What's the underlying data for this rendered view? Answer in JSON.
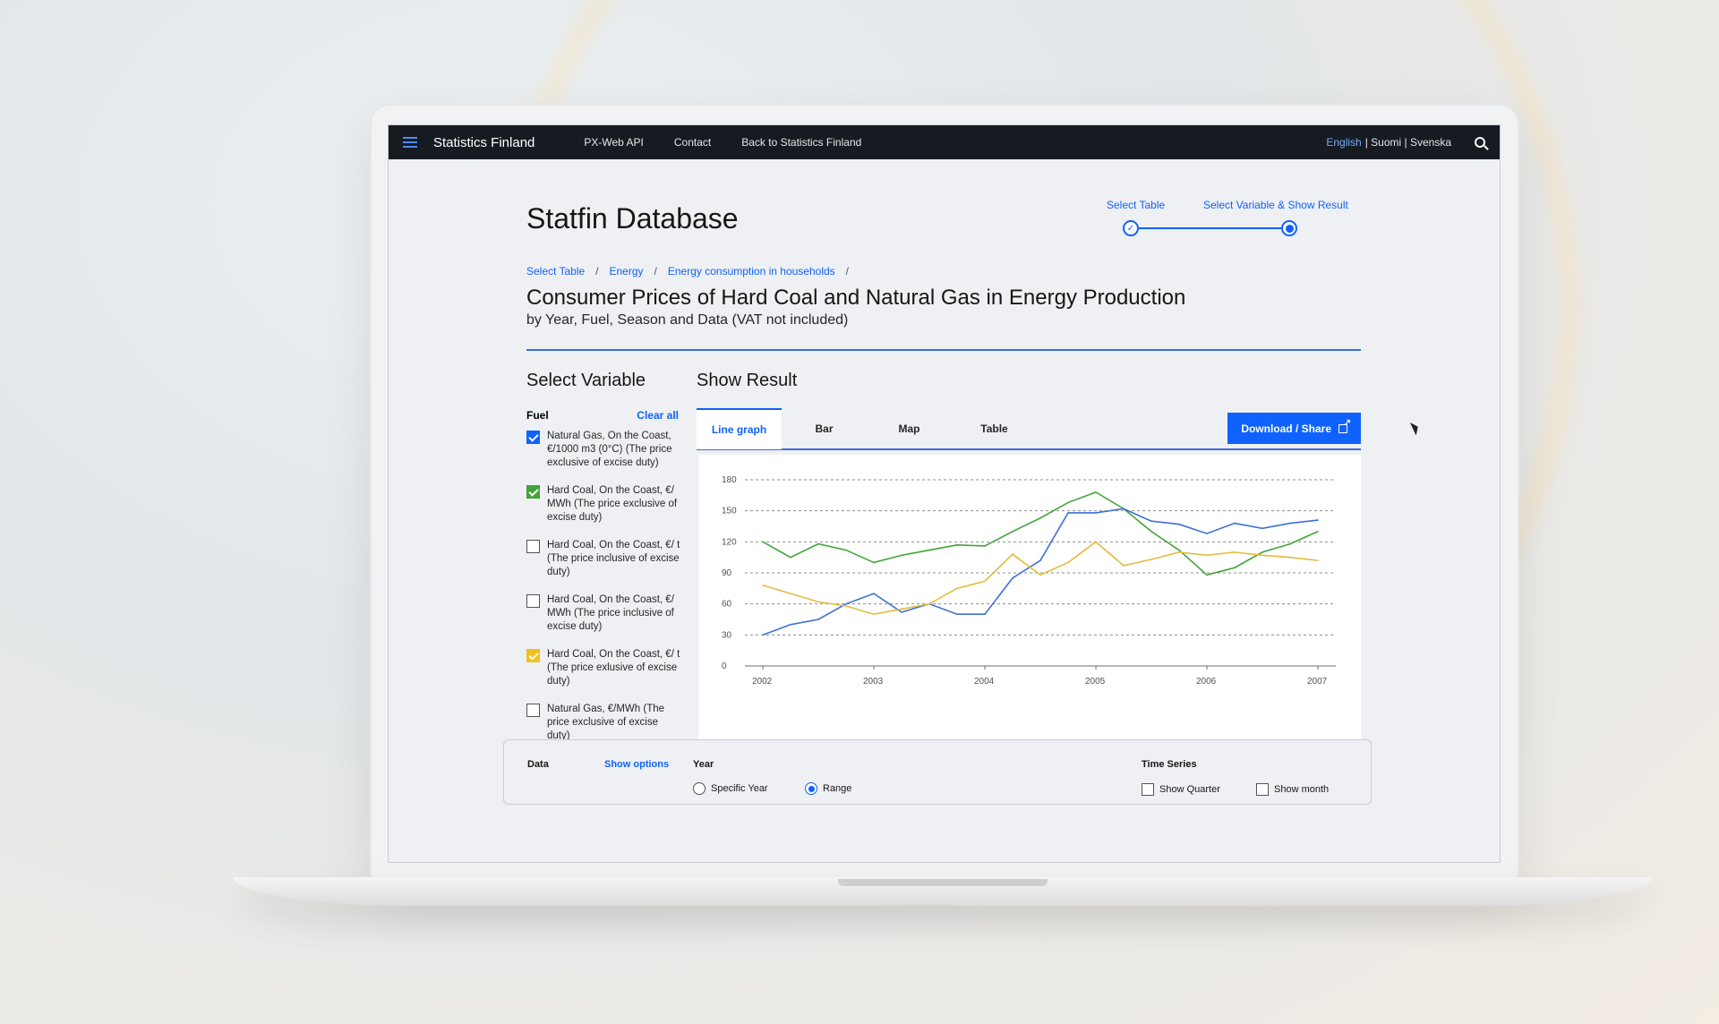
{
  "nav": {
    "brand": "Statistics Finland",
    "links": [
      "PX-Web API",
      "Contact",
      "Back to Statistics Finland"
    ],
    "lang_active": "English",
    "lang_other": "| Suomi | Svenska"
  },
  "page": {
    "title": "Statfin Database",
    "steps": [
      "Select Table",
      "Select Variable & Show Result"
    ],
    "breadcrumb": [
      "Select Table",
      "Energy",
      "Energy consumption in households"
    ],
    "table_title": "Consumer Prices of Hard Coal and Natural Gas in Energy Production",
    "table_subtitle": "by Year, Fuel, Season and Data (VAT not included)",
    "select_variable": "Select Variable",
    "show_result": "Show Result"
  },
  "fuel": {
    "label": "Fuel",
    "clear": "Clear all",
    "items": [
      {
        "label": "Natural Gas, On the Coast, €/1000 m3 (0°C)  (The price exclusive of excise duty)",
        "checked": true,
        "color": "#0f62fe"
      },
      {
        "label": "Hard Coal, On the Coast, €/ MWh (The price exclusive of excise duty)",
        "checked": true,
        "color": "#42a33a"
      },
      {
        "label": "Hard Coal, On the Coast, €/ t (The price inclusive of excise duty)",
        "checked": false,
        "color": ""
      },
      {
        "label": "Hard Coal, On the Coast, €/ MWh (The price inclusive of excise duty)",
        "checked": false,
        "color": ""
      },
      {
        "label": "Hard Coal, On the Coast, €/ t (The price exlusive of excise duty)",
        "checked": true,
        "color": "#f1c21b"
      },
      {
        "label": "Natural Gas, €/MWh  (The price exclusive of excise duty)",
        "checked": false,
        "color": ""
      }
    ]
  },
  "tabs": [
    "Line graph",
    "Bar",
    "Map",
    "Table"
  ],
  "download_label": "Download / Share",
  "chart_data": {
    "type": "line",
    "x_ticks": [
      "2002",
      "2003",
      "2004",
      "2005",
      "2006",
      "2007"
    ],
    "y_ticks": [
      0,
      30,
      60,
      90,
      120,
      150,
      180
    ],
    "ylim": [
      0,
      180
    ],
    "xlim": [
      2002,
      2007
    ],
    "grid": true,
    "series": [
      {
        "color": "#42a33a",
        "x": [
          2002.0,
          2002.25,
          2002.5,
          2002.75,
          2003.0,
          2003.25,
          2003.5,
          2003.75,
          2004.0,
          2004.25,
          2004.5,
          2004.75,
          2005.0,
          2005.25,
          2005.5,
          2005.75,
          2006.0,
          2006.25,
          2006.5,
          2006.75,
          2007.0
        ],
        "values": [
          120,
          105,
          118,
          112,
          100,
          107,
          112,
          117,
          116,
          130,
          143,
          158,
          168,
          152,
          130,
          112,
          88,
          95,
          110,
          118,
          130
        ]
      },
      {
        "color": "#3d6fd6",
        "x": [
          2002.0,
          2002.25,
          2002.5,
          2002.75,
          2003.0,
          2003.25,
          2003.5,
          2003.75,
          2004.0,
          2004.25,
          2004.5,
          2004.75,
          2005.0,
          2005.25,
          2005.5,
          2005.75,
          2006.0,
          2006.25,
          2006.5,
          2006.75,
          2007.0
        ],
        "values": [
          30,
          40,
          45,
          60,
          70,
          52,
          60,
          50,
          50,
          85,
          102,
          148,
          148,
          152,
          140,
          137,
          128,
          138,
          133,
          138,
          141
        ]
      },
      {
        "color": "#e2bc3c",
        "x": [
          2002.0,
          2002.25,
          2002.5,
          2002.75,
          2003.0,
          2003.25,
          2003.5,
          2003.75,
          2004.0,
          2004.25,
          2004.5,
          2004.75,
          2005.0,
          2005.25,
          2005.5,
          2005.75,
          2006.0,
          2006.25,
          2006.5,
          2006.75,
          2007.0
        ],
        "values": [
          78,
          70,
          62,
          58,
          50,
          55,
          60,
          75,
          82,
          108,
          88,
          100,
          120,
          97,
          103,
          110,
          107,
          110,
          107,
          105,
          102
        ]
      }
    ]
  },
  "bottom": {
    "data_label": "Data",
    "show_options": "Show options",
    "year_label": "Year",
    "specific_year": "Specific Year",
    "range": "Range",
    "time_series": "Time Series",
    "show_quarter": "Show Quarter",
    "show_month": "Show month"
  }
}
